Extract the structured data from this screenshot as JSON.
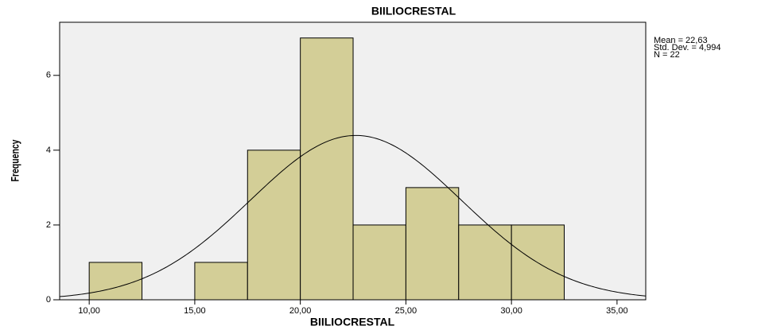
{
  "chart_data": {
    "type": "histogram",
    "title": "BIILIOCRESTAL",
    "x_label": "BIILIOCRESTAL",
    "y_label": "Frequency",
    "bins": [
      10,
      12.5,
      15,
      17.5,
      20,
      22.5,
      25,
      27.5,
      30,
      32.5
    ],
    "counts": [
      1,
      0,
      1,
      4,
      7,
      2,
      3,
      2,
      2
    ],
    "color": "#d3ce97",
    "edge_color": "#000000",
    "background": "#f0f0f0",
    "xlim": [
      8.6,
      36.36
    ],
    "ylim": [
      0,
      7.42
    ],
    "xticks": [
      {
        "value": 10,
        "label": "10,00"
      },
      {
        "value": 15,
        "label": "15,00"
      },
      {
        "value": 20,
        "label": "20,00"
      },
      {
        "value": 25,
        "label": "25,00"
      },
      {
        "value": 30,
        "label": "30,00"
      },
      {
        "value": 35,
        "label": "35,00"
      }
    ],
    "yticks": [
      0,
      2,
      4,
      6
    ],
    "normal_curve": {
      "mean": 22.63,
      "std_dev": 4.994,
      "n": 22
    },
    "annotations": [
      "Mean = 22,63",
      "Std. Dev. = 4,994",
      "N = 22"
    ]
  }
}
